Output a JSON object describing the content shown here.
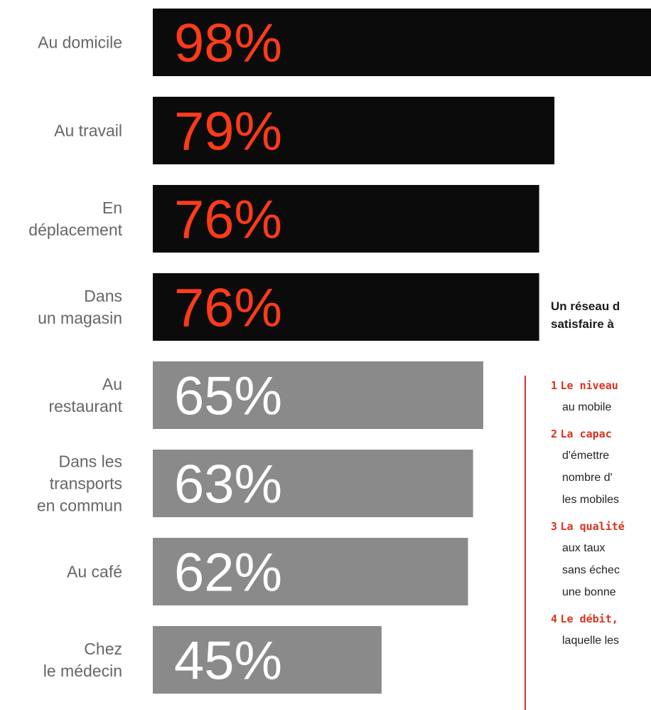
{
  "chart_data": {
    "type": "bar",
    "orientation": "horizontal",
    "categories": [
      [
        "Au domicile"
      ],
      [
        "Au travail"
      ],
      [
        "En",
        "déplacement"
      ],
      [
        "Dans",
        "un magasin"
      ],
      [
        "Au",
        "restaurant"
      ],
      [
        "Dans les",
        "transports",
        "en commun"
      ],
      [
        "Au café"
      ],
      [
        "Chez",
        "le médecin"
      ]
    ],
    "values": [
      98,
      79,
      76,
      76,
      65,
      63,
      62,
      45
    ],
    "value_labels": [
      "98%",
      "79%",
      "76%",
      "76%",
      "65%",
      "63%",
      "62%",
      "45%"
    ],
    "bar_colors": [
      "#0b0b0b",
      "#0b0b0b",
      "#0b0b0b",
      "#0b0b0b",
      "#8a8a8a",
      "#8a8a8a",
      "#8a8a8a",
      "#8a8a8a"
    ],
    "label_colors": [
      "#ff3b1a",
      "#ff3b1a",
      "#ff3b1a",
      "#ff3b1a",
      "#ffffff",
      "#ffffff",
      "#ffffff",
      "#ffffff"
    ],
    "xlim": [
      0,
      100
    ],
    "grid": false,
    "legend": "none"
  },
  "colors": {
    "accent": "#d8321e",
    "category_text": "#666666"
  },
  "side_panel": {
    "heading_lines": [
      "Un réseau d",
      "satisfaire à"
    ],
    "items": [
      {
        "num": "1",
        "lead": "Le niveau",
        "lines": [
          "au mobile"
        ]
      },
      {
        "num": "2",
        "lead": "La capac",
        "lines": [
          "d'émettre",
          "nombre d'",
          "les mobiles"
        ]
      },
      {
        "num": "3",
        "lead": "La qualité",
        "lines": [
          "aux taux",
          "sans échec",
          "une bonne"
        ]
      },
      {
        "num": "4",
        "lead": "Le débit,",
        "lines": [
          "laquelle les"
        ]
      }
    ]
  }
}
